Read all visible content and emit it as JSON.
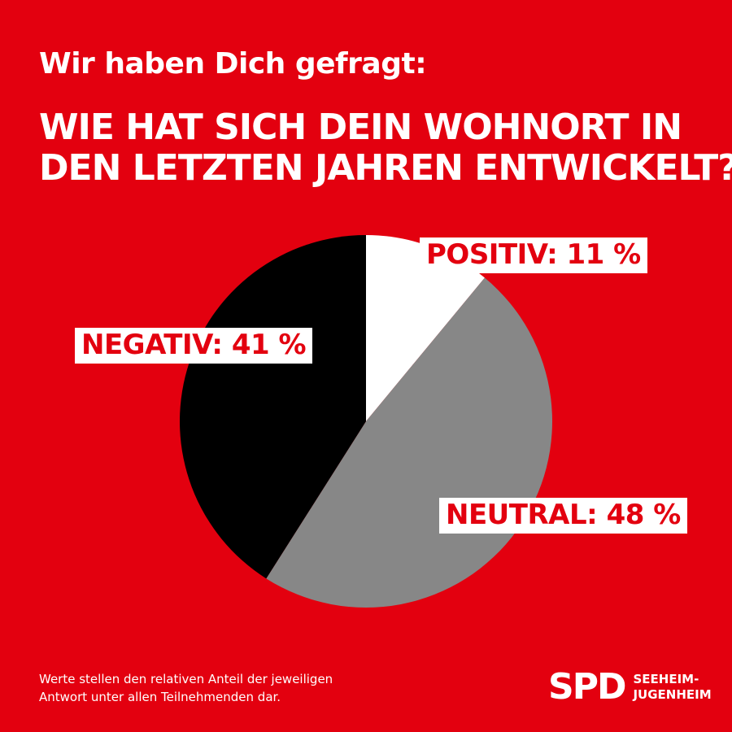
{
  "header": {
    "subtitle": "Wir haben Dich gefragt:",
    "title_line1": "WIE HAT SICH DEIN WOHNORT IN",
    "title_line2": "DEN LETZTEN JAHREN ENTWICKELT?"
  },
  "chart_data": {
    "type": "pie",
    "title": "WIE HAT SICH DEIN WOHNORT IN DEN LETZTEN JAHREN ENTWICKELT?",
    "categories": [
      "POSITIV",
      "NEUTRAL",
      "NEGATIV"
    ],
    "values": [
      11,
      48,
      41
    ],
    "unit": "%",
    "colors": [
      "#ffffff",
      "#878787",
      "#000000"
    ],
    "labels": [
      "POSITIV: 11 %",
      "NEUTRAL: 48 %",
      "NEGATIV: 41 %"
    ],
    "start_angle": "12 o'clock",
    "direction": "clockwise"
  },
  "footnote": {
    "line1": "Werte stellen den relativen Anteil der jeweiligen",
    "line2": "Antwort unter allen Teilnehmenden dar."
  },
  "logo": {
    "mark": "SPD",
    "line1": "SEEHEIM-",
    "line2": "JUGENHEIM"
  },
  "colors": {
    "background": "#e3000f",
    "text": "#ffffff",
    "label_text": "#e3000f"
  }
}
